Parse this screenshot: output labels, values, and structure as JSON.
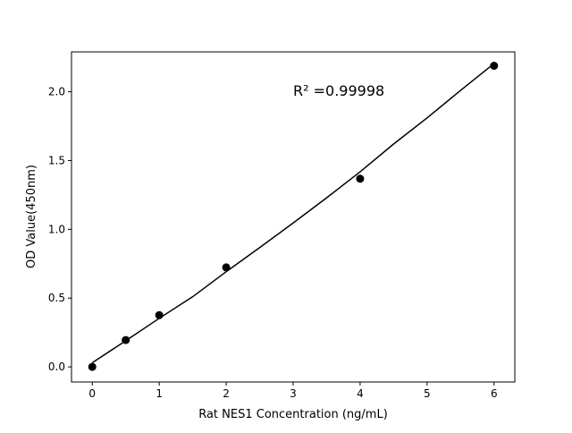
{
  "chart_data": {
    "type": "scatter",
    "title": "",
    "xlabel": "Rat NES1 Concentration (ng/mL)",
    "ylabel": "OD Value(450nm)",
    "xlim": [
      -0.31,
      6.31
    ],
    "ylim": [
      -0.11,
      2.29
    ],
    "xticks": [
      0,
      1,
      2,
      3,
      4,
      5,
      6
    ],
    "xtick_labels": [
      "0",
      "1",
      "2",
      "3",
      "4",
      "5",
      "6"
    ],
    "yticks": [
      0.0,
      0.5,
      1.0,
      1.5,
      2.0
    ],
    "ytick_labels": [
      "0.0",
      "0.5",
      "1.0",
      "1.5",
      "2.0"
    ],
    "grid": false,
    "points": {
      "x": [
        0,
        0.5,
        1,
        2,
        4,
        6
      ],
      "y": [
        0.0,
        0.195,
        0.376,
        0.723,
        1.368,
        2.189
      ]
    },
    "fit_curve": {
      "type": "line",
      "x": [
        0,
        0.5,
        1,
        1.5,
        2,
        2.5,
        3,
        3.5,
        4,
        4.5,
        5,
        5.5,
        6
      ],
      "y": [
        0.03,
        0.19,
        0.353,
        0.51,
        0.692,
        0.867,
        1.046,
        1.229,
        1.418,
        1.62,
        1.81,
        2.01,
        2.205
      ]
    },
    "annotation": {
      "text": "R² =0.99998",
      "x": 3.0,
      "y": 2.0
    },
    "colors": {
      "points": "#000000",
      "line": "#000000"
    }
  }
}
